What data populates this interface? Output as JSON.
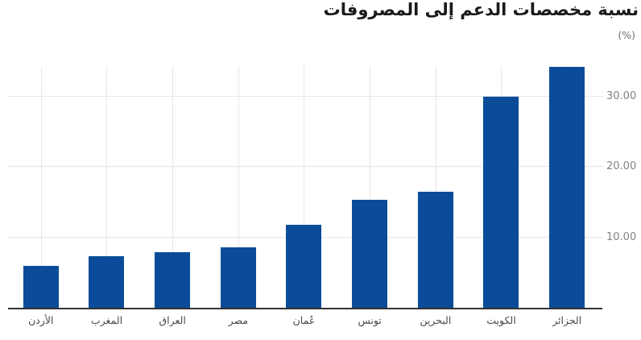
{
  "header": {
    "title": "نسبة مخصصات الدعم إلى المصروفات",
    "unit_label": "(%)"
  },
  "chart_data": {
    "type": "bar",
    "title": "نسبة مخصصات الدعم إلى المصروفات",
    "ylabel": "(%)",
    "xlabel": "",
    "direction": "rtl",
    "category_order": "first category rendered at the right edge (RTL), descending values toward the left",
    "categories": [
      "الجزائر",
      "الكويت",
      "البحرين",
      "تونس",
      "عُمان",
      "مصر",
      "العراق",
      "المغرب",
      "الأردن"
    ],
    "values": [
      34.2,
      29.9,
      16.5,
      15.3,
      11.8,
      8.6,
      7.9,
      7.3,
      5.9
    ],
    "ylim": [
      0,
      34.3
    ],
    "yticks": [
      {
        "value": 30,
        "label": "30.00"
      },
      {
        "value": 20,
        "label": "20.00"
      },
      {
        "value": 10,
        "label": "10.00"
      }
    ],
    "grid": true,
    "legend": "none",
    "yaxis_position": "right",
    "colors": {
      "bar": "#0a4c99",
      "grid": "#e6e6e6",
      "axis_line": "#333333",
      "title_text": "#1a1a1a",
      "unit_text": "#6f6f6f",
      "ytick_text": "#828282",
      "xtick_text": "#4a4a4a",
      "background": "#ffffff"
    }
  }
}
